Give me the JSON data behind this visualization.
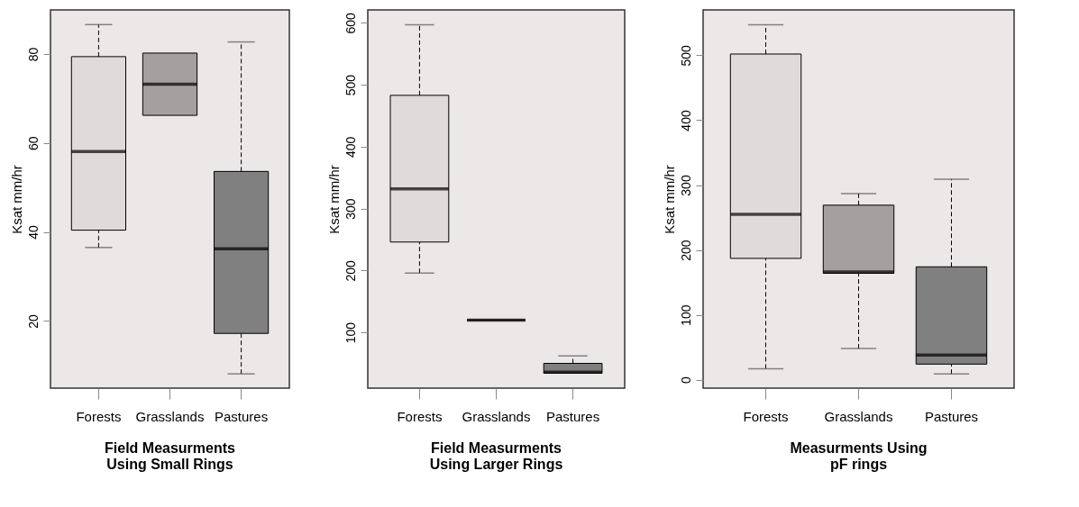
{
  "chart_data": [
    {
      "type": "box",
      "title": "Field Measurments\nUsing Small Rings",
      "ylabel": "Ksat mm/hr",
      "categories": [
        "Forests",
        "Grasslands",
        "Pastures"
      ],
      "colors": [
        "#dfdbdb",
        "#a4a09f",
        "#808080"
      ],
      "boxes": [
        {
          "low": 36.5,
          "q1": 40.4,
          "median": 58.1,
          "q3": 79.4,
          "high": 86.6
        },
        {
          "low": 66.2,
          "q1": 66.2,
          "median": 73.2,
          "q3": 80.2,
          "high": 80.2
        },
        {
          "low": 8.1,
          "q1": 17.2,
          "median": 36.2,
          "q3": 53.6,
          "high": 82.7
        }
      ],
      "ylim": [
        4.9,
        89.9
      ],
      "yticks": [
        20,
        40,
        60,
        80
      ],
      "grid": false
    },
    {
      "type": "box",
      "title": "Field Measurments\nUsing Larger Rings",
      "ylabel": "Ksat mm/hr",
      "categories": [
        "Forests",
        "Grasslands",
        "Pastures"
      ],
      "colors": [
        "#dfdbdb",
        "#000000",
        "#808080"
      ],
      "boxes": [
        {
          "low": 196,
          "q1": 246,
          "median": 332,
          "q3": 483,
          "high": 597
        },
        {
          "low": 120,
          "q1": 120,
          "median": 120,
          "q3": 120,
          "high": 120
        },
        {
          "low": 34,
          "q1": 34,
          "median": 36,
          "q3": 50,
          "high": 62
        }
      ],
      "ylim": [
        10,
        621
      ],
      "yticks": [
        100,
        200,
        300,
        400,
        500,
        600
      ],
      "grid": false
    },
    {
      "type": "box",
      "title": "Measurments Using\npF rings",
      "ylabel": "Ksat mm/hr",
      "categories": [
        "Forests",
        "Grasslands",
        "Pastures"
      ],
      "colors": [
        "#dfdbdb",
        "#a4a09f",
        "#808080"
      ],
      "boxes": [
        {
          "low": 17,
          "q1": 187,
          "median": 255,
          "q3": 502,
          "high": 547
        },
        {
          "low": 48,
          "q1": 164,
          "median": 166,
          "q3": 269,
          "high": 287
        },
        {
          "low": 9,
          "q1": 24,
          "median": 38,
          "q3": 174,
          "high": 309
        }
      ],
      "ylim": [
        -13,
        570
      ],
      "yticks": [
        0,
        100,
        200,
        300,
        400,
        500
      ],
      "grid": false
    }
  ]
}
